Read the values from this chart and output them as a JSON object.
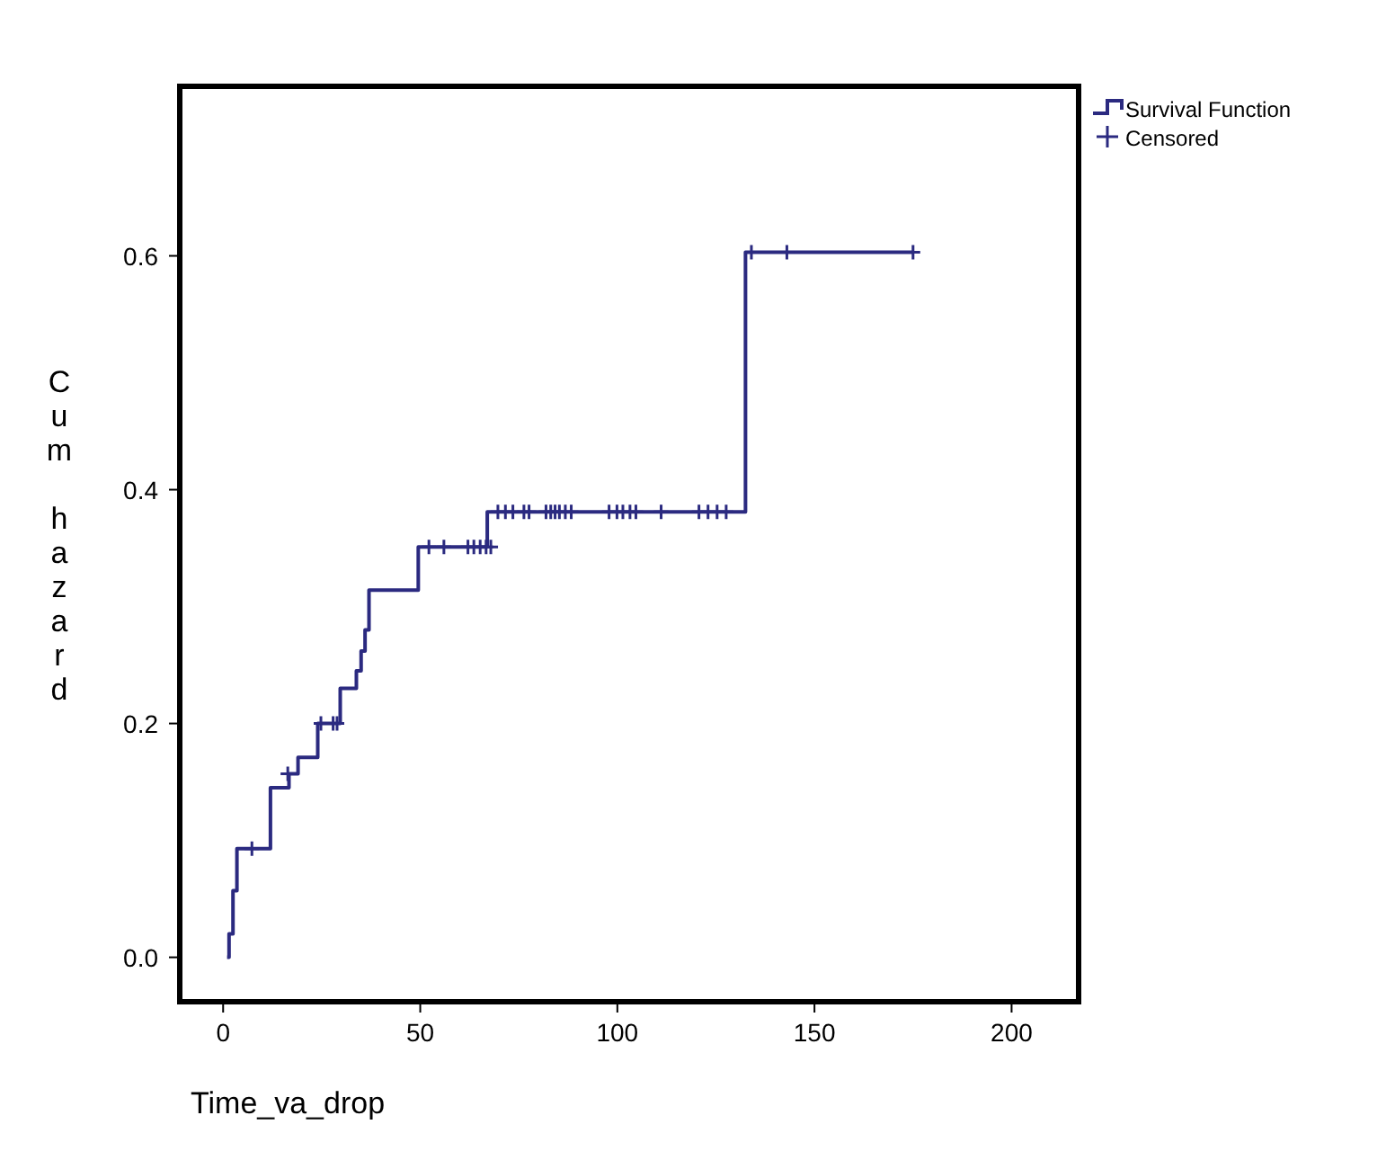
{
  "chart_data": {
    "type": "step",
    "xlabel": "Time_va_drop",
    "ylabel": "Cum hazard",
    "xlim": [
      -11,
      217
    ],
    "ylim": [
      -0.038,
      0.745
    ],
    "xticks": [
      0,
      50,
      100,
      150,
      200
    ],
    "yticks": [
      {
        "value": 0,
        "label": "0.0"
      },
      {
        "value": 0.2,
        "label": "0.2"
      },
      {
        "value": 0.4,
        "label": "0.4"
      },
      {
        "value": 0.6,
        "label": "0.6"
      }
    ],
    "grid": false,
    "legend": "top right",
    "series": [
      {
        "name": "Survival Function",
        "color": "#2b2a80",
        "x": [
          1,
          1.5,
          2.5,
          3.5,
          12,
          16.7,
          19,
          24,
          29.7,
          33.8,
          35,
          36,
          37,
          49.5,
          67,
          132.5,
          175
        ],
        "values": [
          0,
          0.02,
          0.057,
          0.093,
          0.145,
          0.157,
          0.171,
          0.2,
          0.23,
          0.245,
          0.262,
          0.28,
          0.314,
          0.351,
          0.381,
          0.603,
          0.603
        ]
      },
      {
        "name": "Censored",
        "type": "scatter",
        "marker": "cross",
        "color": "#2b2a80",
        "x": [
          7.3,
          16.4,
          24.8,
          27.9,
          28.9,
          52.2,
          56,
          62.1,
          63.6,
          65.2,
          66.7,
          67.9,
          69.7,
          71.6,
          73.5,
          76.3,
          77.6,
          81.9,
          83.1,
          84.2,
          85.3,
          86.8,
          88.3,
          97.9,
          99.9,
          101.4,
          103.2,
          104.7,
          111.1,
          120.7,
          123,
          125.3,
          127.6,
          134,
          143,
          175
        ],
        "values": [
          0.093,
          0.157,
          0.2,
          0.2,
          0.2,
          0.351,
          0.351,
          0.351,
          0.351,
          0.351,
          0.351,
          0.351,
          0.381,
          0.381,
          0.381,
          0.381,
          0.381,
          0.381,
          0.381,
          0.381,
          0.381,
          0.381,
          0.381,
          0.381,
          0.381,
          0.381,
          0.381,
          0.381,
          0.381,
          0.381,
          0.381,
          0.381,
          0.381,
          0.603,
          0.603,
          0.603
        ]
      }
    ]
  }
}
